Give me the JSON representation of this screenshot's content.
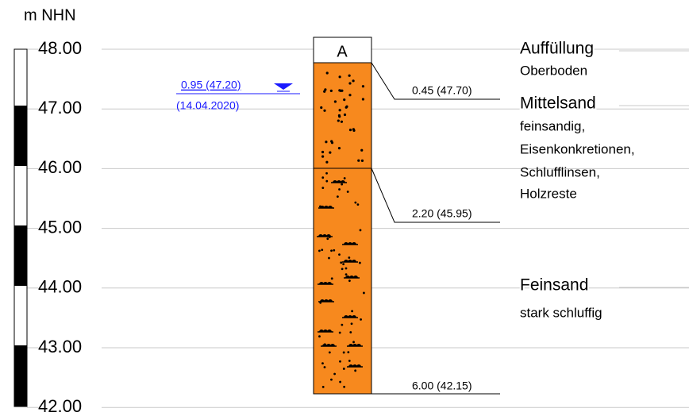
{
  "scale": {
    "unit": "m NHN",
    "ticks": [
      "48.00",
      "47.00",
      "46.00",
      "45.00",
      "44.00",
      "43.00",
      "42.00"
    ]
  },
  "water_level": {
    "label": "0.95 (47.20)",
    "date": "(14.04.2020)"
  },
  "column": {
    "label": "A"
  },
  "layers": [
    {
      "name": "Auffüllung",
      "description": [
        "Oberboden"
      ],
      "bottom": "0.45 (47.70)"
    },
    {
      "name": "Mittelsand",
      "description": [
        "feinsandig,",
        "Eisenkonkretionen,",
        "Schlufflinsen,",
        "Holzreste"
      ],
      "bottom": "2.20 (45.95)"
    },
    {
      "name": "Feinsand",
      "description": [
        "stark schluffig"
      ],
      "bottom": "6.00 (42.15)"
    }
  ]
}
